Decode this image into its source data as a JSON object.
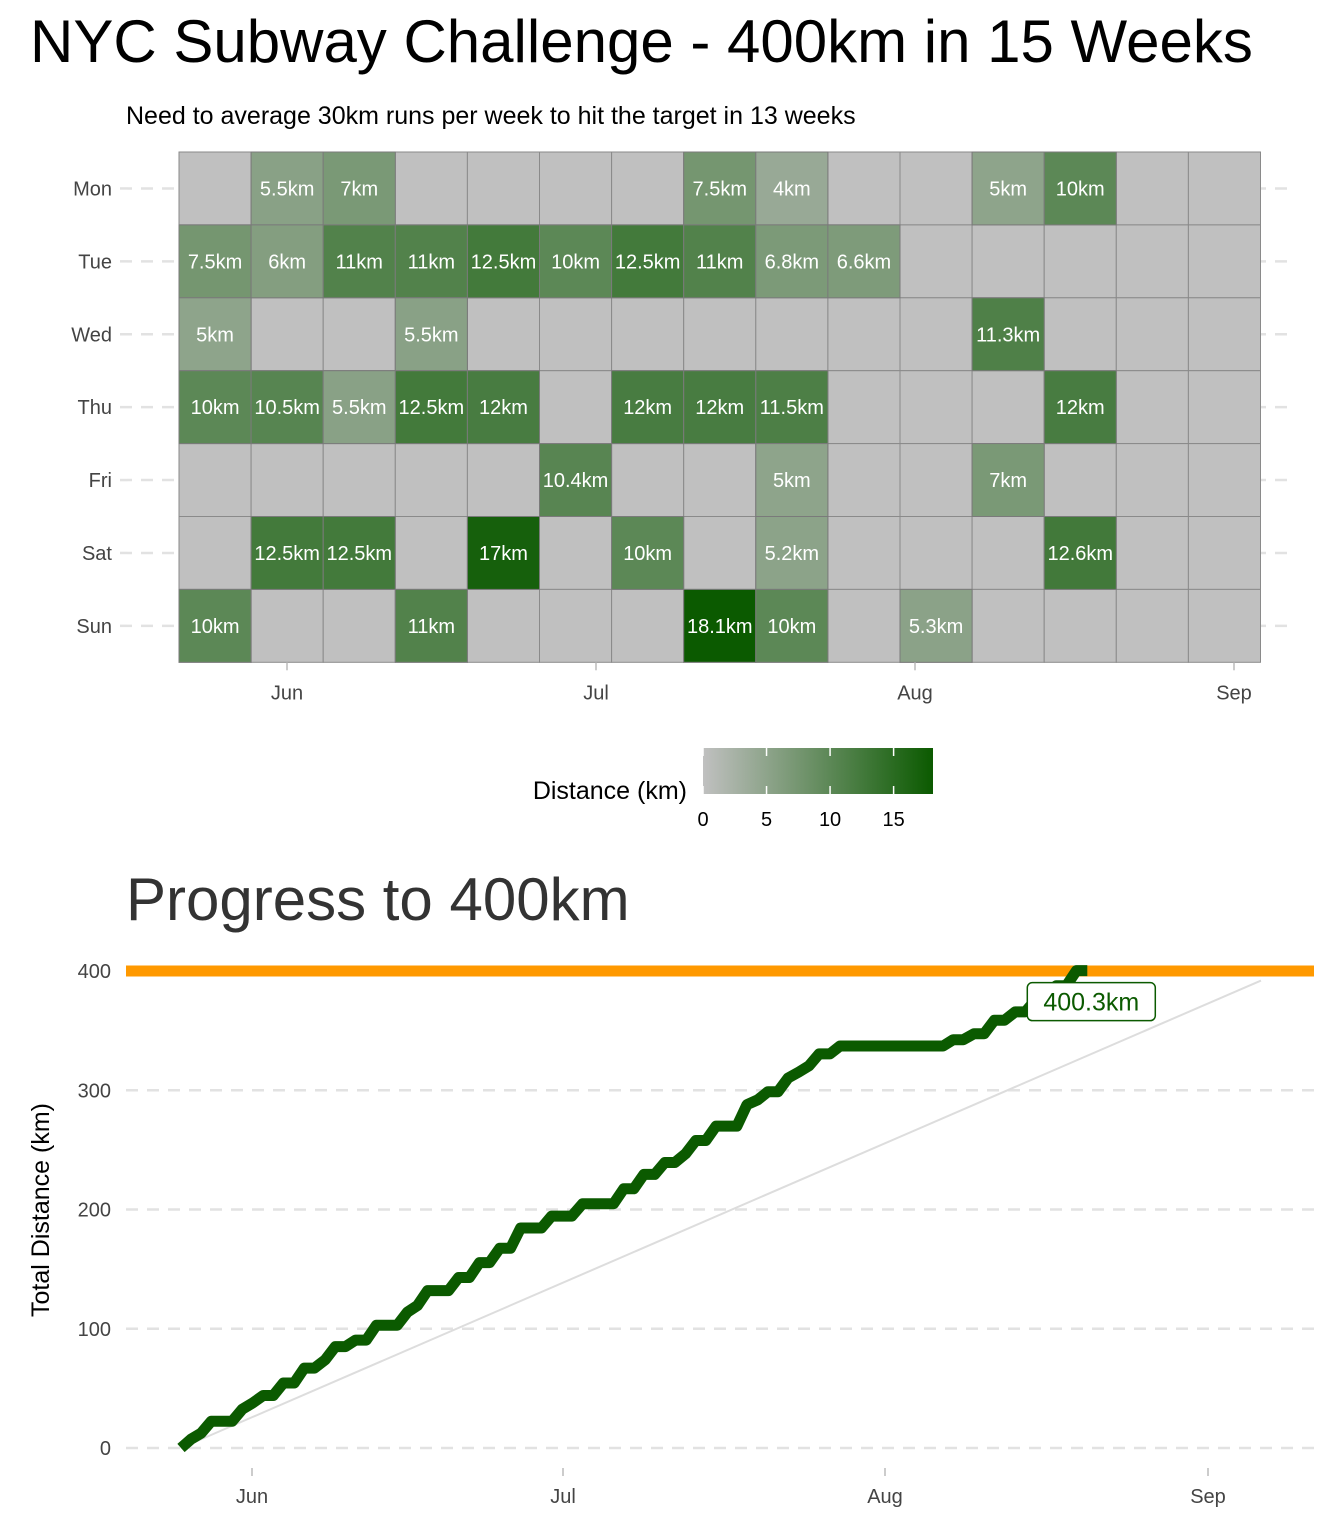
{
  "title": "NYC Subway Challenge - 400km in 15 Weeks",
  "subtitle": "Need to average 30km runs per week to hit the target in 13 weeks",
  "chart_data": [
    {
      "type": "heatmap",
      "x_tick_labels": [
        "Jun",
        "Jul",
        "Aug",
        "Sep"
      ],
      "y_categories": [
        "Mon",
        "Tue",
        "Wed",
        "Thu",
        "Fri",
        "Sat",
        "Sun"
      ],
      "weeks": 15,
      "label_suffix": "km",
      "cells": [
        {
          "week": 1,
          "day": "Mon",
          "label": "5.5km",
          "value": 5.5
        },
        {
          "week": 2,
          "day": "Mon",
          "label": "7km",
          "value": 7
        },
        {
          "week": 7,
          "day": "Mon",
          "label": "7.5km",
          "value": 7.5
        },
        {
          "week": 8,
          "day": "Mon",
          "label": "4km",
          "value": 4
        },
        {
          "week": 11,
          "day": "Mon",
          "label": "5km",
          "value": 5
        },
        {
          "week": 12,
          "day": "Mon",
          "label": "10km",
          "value": 10
        },
        {
          "week": 0,
          "day": "Tue",
          "label": "7.5km",
          "value": 7.5
        },
        {
          "week": 1,
          "day": "Tue",
          "label": "6km",
          "value": 6
        },
        {
          "week": 2,
          "day": "Tue",
          "label": "11km",
          "value": 11
        },
        {
          "week": 3,
          "day": "Tue",
          "label": "11km",
          "value": 11
        },
        {
          "week": 4,
          "day": "Tue",
          "label": "12.5km",
          "value": 12.5
        },
        {
          "week": 5,
          "day": "Tue",
          "label": "10km",
          "value": 10
        },
        {
          "week": 6,
          "day": "Tue",
          "label": "12.5km",
          "value": 12.5
        },
        {
          "week": 7,
          "day": "Tue",
          "label": "11km",
          "value": 11
        },
        {
          "week": 8,
          "day": "Tue",
          "label": "6.8km",
          "value": 6.8
        },
        {
          "week": 9,
          "day": "Tue",
          "label": "6.6km",
          "value": 6.6
        },
        {
          "week": 0,
          "day": "Wed",
          "label": "5km",
          "value": 5
        },
        {
          "week": 3,
          "day": "Wed",
          "label": "5.5km",
          "value": 5.5
        },
        {
          "week": 11,
          "day": "Wed",
          "label": "11.3km",
          "value": 11.3
        },
        {
          "week": 0,
          "day": "Thu",
          "label": "10km",
          "value": 10
        },
        {
          "week": 1,
          "day": "Thu",
          "label": "10.5km",
          "value": 10.5
        },
        {
          "week": 2,
          "day": "Thu",
          "label": "5.5km",
          "value": 5.5
        },
        {
          "week": 3,
          "day": "Thu",
          "label": "12.5km",
          "value": 12.5
        },
        {
          "week": 4,
          "day": "Thu",
          "label": "12km",
          "value": 12
        },
        {
          "week": 6,
          "day": "Thu",
          "label": "12km",
          "value": 12
        },
        {
          "week": 7,
          "day": "Thu",
          "label": "12km",
          "value": 12
        },
        {
          "week": 8,
          "day": "Thu",
          "label": "11.5km",
          "value": 11.5
        },
        {
          "week": 12,
          "day": "Thu",
          "label": "12km",
          "value": 12
        },
        {
          "week": 5,
          "day": "Fri",
          "label": "10.4km",
          "value": 10.4
        },
        {
          "week": 8,
          "day": "Fri",
          "label": "5km",
          "value": 5
        },
        {
          "week": 11,
          "day": "Fri",
          "label": "7km",
          "value": 7
        },
        {
          "week": 1,
          "day": "Sat",
          "label": "12.5km",
          "value": 12.5
        },
        {
          "week": 2,
          "day": "Sat",
          "label": "12.5km",
          "value": 12.5
        },
        {
          "week": 4,
          "day": "Sat",
          "label": "17km",
          "value": 17
        },
        {
          "week": 6,
          "day": "Sat",
          "label": "10km",
          "value": 10
        },
        {
          "week": 8,
          "day": "Sat",
          "label": "5.2km",
          "value": 5.2
        },
        {
          "week": 12,
          "day": "Sat",
          "label": "12.6km",
          "value": 12.6
        },
        {
          "week": 0,
          "day": "Sun",
          "label": "10km",
          "value": 10
        },
        {
          "week": 3,
          "day": "Sun",
          "label": "11km",
          "value": 11
        },
        {
          "week": 7,
          "day": "Sun",
          "label": "18.1km",
          "value": 18.1
        },
        {
          "week": 8,
          "day": "Sun",
          "label": "10km",
          "value": 10
        },
        {
          "week": 10,
          "day": "Sun",
          "label": "5.3km",
          "value": 5.3
        }
      ],
      "legend": {
        "title": "Distance (km)",
        "ticks": [
          "0",
          "5",
          "10",
          "15"
        ],
        "range": [
          0,
          18.1
        ],
        "colors": {
          "low": "#c0c0c0",
          "high": "#0b5a00",
          "empty": "#c0c0c0",
          "cell_label": "#ffffff"
        }
      }
    },
    {
      "type": "line",
      "title": "Progress to 400km",
      "ylabel": "Total Distance (km)",
      "xlabel": "",
      "y_ticks": [
        "0",
        "100",
        "200",
        "300",
        "400"
      ],
      "ylim": [
        0,
        400
      ],
      "x_tick_labels": [
        "Jun",
        "Jul",
        "Aug",
        "Sep"
      ],
      "grid": "horizontal dashed",
      "target": {
        "value": 400,
        "color": "#ff9900"
      },
      "end_label": "400.3km",
      "line_color": "#0b5a00",
      "pace_line_color": "#dddddd",
      "series": [
        {
          "x_week_offsets": [
            0,
            0.14,
            0.28,
            0.42,
            0.57,
            0.71,
            0.85,
            1.0,
            1.14,
            1.28,
            1.42,
            1.57,
            1.71,
            1.85,
            2.0,
            2.14,
            2.28,
            2.42,
            2.57,
            2.71,
            2.85,
            3.0,
            3.14,
            3.28,
            3.42,
            3.57,
            3.71,
            3.85,
            4.0,
            4.14,
            4.28,
            4.42,
            4.57,
            4.71,
            4.85,
            5.0,
            5.14,
            5.28,
            5.42,
            5.57,
            5.71,
            5.85,
            6.0,
            6.14,
            6.28,
            6.42,
            6.57,
            6.71,
            6.85,
            7.0,
            7.14,
            7.28,
            7.42,
            7.57,
            7.71,
            7.85,
            8.0,
            8.14,
            8.28,
            8.42,
            8.57,
            8.71,
            8.85,
            9.0,
            9.14,
            9.28,
            9.42,
            9.57,
            9.71,
            9.85,
            10.0,
            10.14,
            10.28,
            10.42,
            10.57,
            10.71,
            10.85,
            11.0,
            11.14,
            11.28,
            11.42,
            11.57,
            11.71,
            11.85,
            12.0,
            12.14,
            12.28,
            12.42,
            12.57
          ],
          "values": [
            0,
            7.5,
            12.5,
            22.5,
            22.5,
            22.5,
            32.5,
            38.0,
            44.0,
            44.0,
            54.5,
            54.5,
            67.0,
            67.0,
            74.0,
            85.0,
            85.0,
            90.5,
            90.5,
            103.0,
            103.0,
            103.0,
            114.0,
            119.5,
            132.0,
            132.0,
            132.0,
            143.0,
            143.0,
            155.5,
            155.5,
            167.5,
            167.5,
            184.5,
            184.5,
            184.5,
            194.5,
            194.5,
            194.5,
            204.9,
            204.9,
            204.9,
            204.9,
            217.4,
            217.4,
            229.4,
            229.4,
            239.4,
            239.4,
            246.9,
            257.9,
            257.9,
            269.9,
            269.9,
            269.9,
            288.0,
            292.0,
            298.8,
            298.8,
            310.3,
            315.3,
            320.5,
            330.5,
            330.5,
            337.1,
            337.1,
            337.1,
            337.1,
            337.1,
            337.1,
            337.1,
            337.1,
            337.1,
            337.1,
            337.1,
            342.4,
            342.4,
            347.4,
            347.4,
            358.7,
            358.7,
            365.7,
            365.7,
            375.7,
            375.7,
            387.7,
            387.7,
            400.3,
            400.3
          ]
        }
      ]
    }
  ]
}
